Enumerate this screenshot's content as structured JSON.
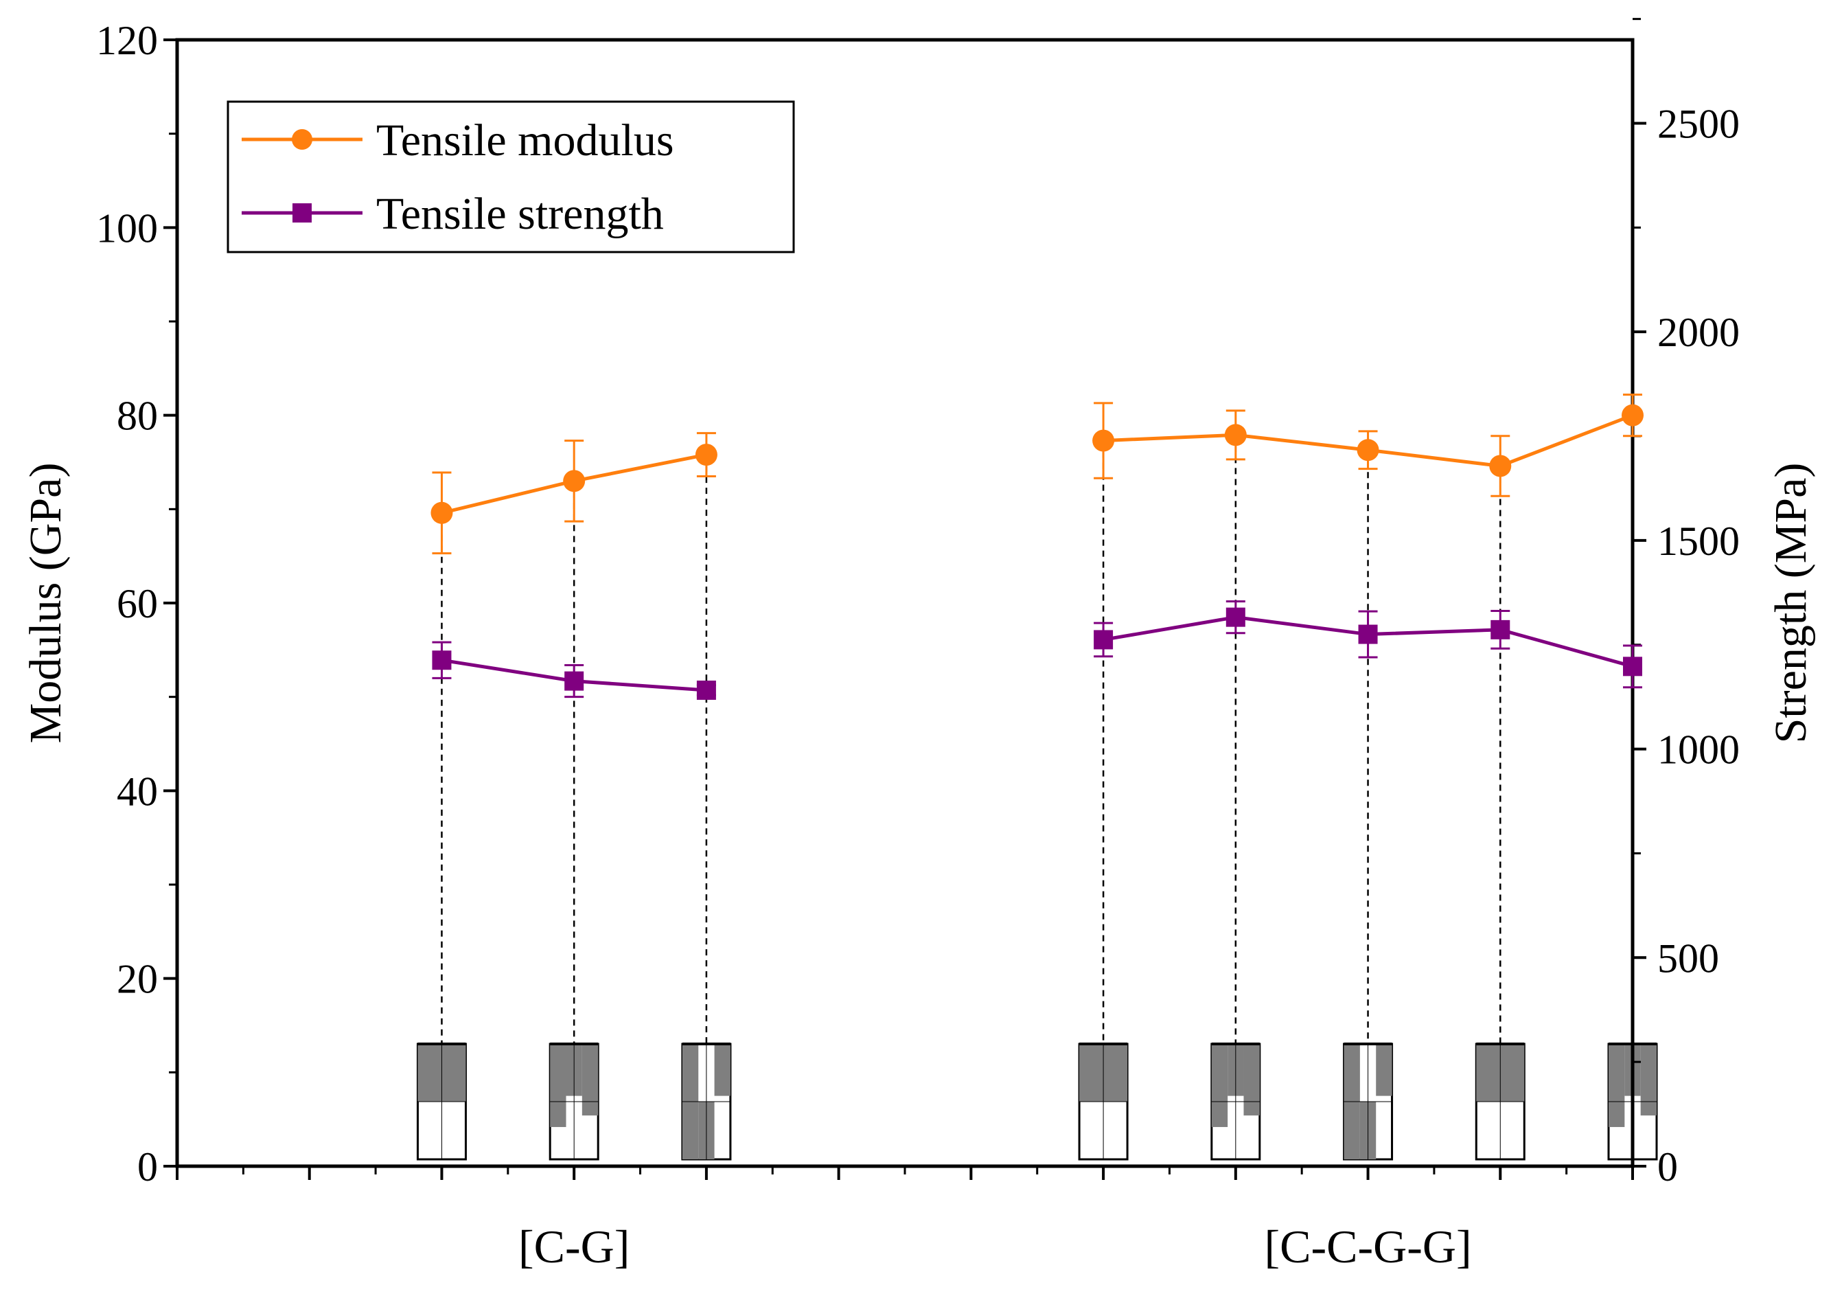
{
  "chart_data": {
    "type": "line",
    "title": "",
    "xlabel": "",
    "ylabel_left": "Modulus (GPa)",
    "ylabel_right": "Strength (MPa)",
    "ylim_left": [
      0,
      120
    ],
    "ylim_right": [
      0,
      2700
    ],
    "yticks_left": [
      "0",
      "20",
      "40",
      "60",
      "80",
      "100",
      "120"
    ],
    "yticks_right": [
      "0",
      "500",
      "1000",
      "1500",
      "2000",
      "2500"
    ],
    "groups": [
      {
        "label": "[C-G]",
        "positions": [
          1,
          2,
          3
        ]
      },
      {
        "label": "[C-C-G-G]",
        "positions": [
          6,
          7,
          8,
          9,
          10
        ]
      }
    ],
    "legend": {
      "position": "top-left",
      "entries": [
        "Tensile modulus",
        "Tensile strength"
      ]
    },
    "series": [
      {
        "name": "Tensile modulus",
        "axis": "left",
        "color": "#ff7f0e",
        "marker": "circle",
        "segments": [
          {
            "x": [
              1,
              2,
              3
            ],
            "values": [
              69.6,
              73.0,
              75.8
            ],
            "errors": [
              4.3,
              4.3,
              2.3
            ]
          },
          {
            "x": [
              6,
              7,
              8,
              9,
              10
            ],
            "values": [
              77.3,
              77.9,
              76.3,
              74.6,
              80.0
            ],
            "errors": [
              4.0,
              2.6,
              2.0,
              3.2,
              2.2
            ]
          }
        ]
      },
      {
        "name": "Tensile strength",
        "axis": "right",
        "color": "#800080",
        "marker": "square",
        "segments": [
          {
            "x": [
              1,
              2,
              3
            ],
            "values": [
              1213,
              1163,
              1141
            ],
            "errors": [
              43,
              38,
              12
            ]
          },
          {
            "x": [
              6,
              7,
              8,
              9,
              10
            ],
            "values": [
              1262,
              1316,
              1275,
              1286,
              1198
            ],
            "errors": [
              40,
              38,
              55,
              45,
              50
            ]
          }
        ]
      }
    ]
  }
}
